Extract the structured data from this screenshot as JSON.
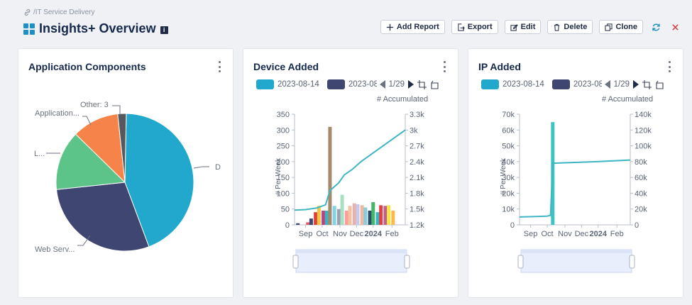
{
  "breadcrumb": {
    "text": "/IT Service Delivery",
    "icon": "link-icon"
  },
  "page": {
    "title": "Insights+ Overview",
    "info_badge": "i"
  },
  "toolbar": {
    "add_report": "Add Report",
    "export": "Export",
    "edit": "Edit",
    "delete": "Delete",
    "clone": "Clone"
  },
  "colors": {
    "accent": "#1e8fc6",
    "close": "#d9363e",
    "teal": "#3fb6c3",
    "navy": "#3f4672"
  },
  "cards": {
    "app_components": {
      "title": "Application Components",
      "labels": {
        "d": "D",
        "web": "Web Serv...",
        "l": "L...",
        "application": "Application...",
        "other": "Other: 3"
      }
    },
    "device_added": {
      "title": "Device Added",
      "legend": {
        "series1": "2023-08-14",
        "series2": "2023-08",
        "page": "1/29"
      },
      "accumulated_label": "# Accumulated",
      "per_week_label": "# Per Week",
      "left_ticks": [
        "350",
        "300",
        "250",
        "200",
        "150",
        "100",
        "50",
        "0"
      ],
      "right_ticks": [
        "3.3k",
        "3k",
        "2.7k",
        "2.4k",
        "2.1k",
        "1.8k",
        "1.5k",
        "1.2k"
      ],
      "x_ticks": [
        "Sep",
        "Oct",
        "Nov",
        "Dec",
        "2024",
        "Feb"
      ]
    },
    "ip_added": {
      "title": "IP Added",
      "legend": {
        "series1": "2023-08-14",
        "series2": "2023-08",
        "page": "1/29"
      },
      "accumulated_label": "# Accumulated",
      "per_week_label": "# Per Week",
      "left_ticks": [
        "70k",
        "60k",
        "50k",
        "40k",
        "30k",
        "20k",
        "10k",
        "0"
      ],
      "right_ticks": [
        "140k",
        "120k",
        "100k",
        "80k",
        "60k",
        "40k",
        "20k",
        "0"
      ],
      "x_ticks": [
        "Sep",
        "Oct",
        "Nov",
        "Dec",
        "2024",
        "Feb"
      ]
    }
  },
  "chart_data": [
    {
      "type": "pie",
      "title": "Application Components",
      "slices": [
        {
          "label": "D",
          "value": 44,
          "color": "#22a8cc"
        },
        {
          "label": "Web Serv...",
          "value": 29,
          "color": "#3f4672"
        },
        {
          "label": "L...",
          "value": 14,
          "color": "#5cc488"
        },
        {
          "label": "Application...",
          "value": 11,
          "color": "#f6844a"
        },
        {
          "label": "Other: 3",
          "value": 2,
          "color": "#55595f"
        }
      ]
    },
    {
      "type": "bar",
      "title": "Device Added",
      "ylabel": "# Per Week",
      "y2label": "# Accumulated",
      "ylim": [
        0,
        350
      ],
      "y2lim": [
        1200,
        3300
      ],
      "bars": [
        {
          "t": 0.03,
          "v": 5,
          "color": "#3f4672"
        },
        {
          "t": 0.12,
          "v": 8,
          "color": "#e05a6b"
        },
        {
          "t": 0.15,
          "v": 20,
          "color": "#3f4672"
        },
        {
          "t": 0.19,
          "v": 40,
          "color": "#e0403a"
        },
        {
          "t": 0.22,
          "v": 60,
          "color": "#f5c542"
        },
        {
          "t": 0.26,
          "v": 45,
          "color": "#c04080"
        },
        {
          "t": 0.29,
          "v": 45,
          "color": "#3bb3c3"
        },
        {
          "t": 0.32,
          "v": 310,
          "color": "#a4896a"
        },
        {
          "t": 0.36,
          "v": 60,
          "color": "#82d4e0"
        },
        {
          "t": 0.4,
          "v": 50,
          "color": "#9aa0b8"
        },
        {
          "t": 0.43,
          "v": 95,
          "color": "#a8e0c0"
        },
        {
          "t": 0.47,
          "v": 45,
          "color": "#ff9d9d"
        },
        {
          "t": 0.5,
          "v": 60,
          "color": "#f2c49d"
        },
        {
          "t": 0.54,
          "v": 68,
          "color": "#e8b0b0"
        },
        {
          "t": 0.57,
          "v": 65,
          "color": "#c8c8e8"
        },
        {
          "t": 0.61,
          "v": 62,
          "color": "#f0b8a0"
        },
        {
          "t": 0.64,
          "v": 55,
          "color": "#88ccdd"
        },
        {
          "t": 0.68,
          "v": 45,
          "color": "#2b4d6e"
        },
        {
          "t": 0.71,
          "v": 72,
          "color": "#44b868"
        },
        {
          "t": 0.75,
          "v": 40,
          "color": "#3bb3c3"
        },
        {
          "t": 0.78,
          "v": 62,
          "color": "#e04040"
        },
        {
          "t": 0.82,
          "v": 60,
          "color": "#c06090"
        },
        {
          "t": 0.85,
          "v": 62,
          "color": "#f5e642"
        },
        {
          "t": 0.89,
          "v": 45,
          "color": "#ffb84a"
        }
      ],
      "accumulated": [
        [
          0,
          1480
        ],
        [
          0.1,
          1490
        ],
        [
          0.2,
          1520
        ],
        [
          0.28,
          1580
        ],
        [
          0.32,
          1850
        ],
        [
          0.4,
          2000
        ],
        [
          0.45,
          2150
        ],
        [
          0.52,
          2250
        ],
        [
          0.6,
          2400
        ],
        [
          0.7,
          2550
        ],
        [
          0.8,
          2700
        ],
        [
          0.9,
          2850
        ],
        [
          1.0,
          3000
        ]
      ]
    },
    {
      "type": "bar",
      "title": "IP Added",
      "ylabel": "# Per Week",
      "y2label": "# Accumulated",
      "ylim": [
        0,
        70000
      ],
      "y2lim": [
        0,
        140000
      ],
      "bars": [
        {
          "t": 0.3,
          "v": 65000,
          "color": "#3ec3c3"
        }
      ],
      "accumulated": [
        [
          0,
          10000
        ],
        [
          0.25,
          11000
        ],
        [
          0.28,
          12000
        ],
        [
          0.3,
          78000
        ],
        [
          0.5,
          79000
        ],
        [
          0.7,
          80000
        ],
        [
          1.0,
          82000
        ]
      ]
    }
  ]
}
